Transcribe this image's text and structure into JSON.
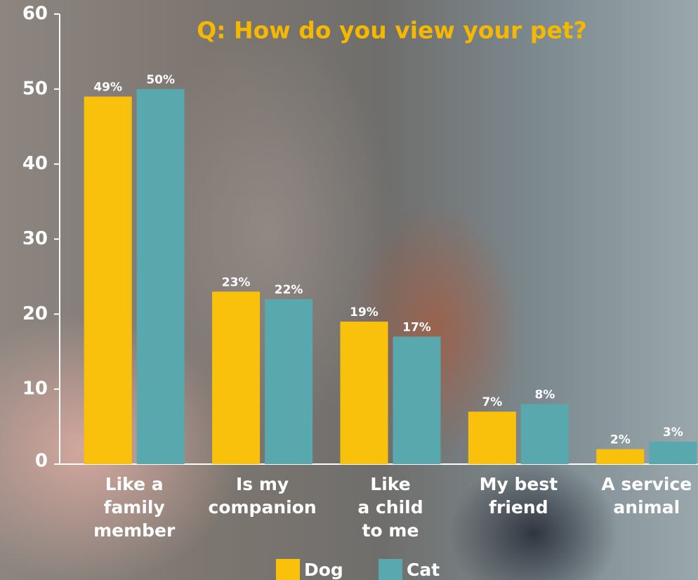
{
  "chart_data": {
    "type": "bar",
    "title": "Q: How do you view your pet?",
    "categories": [
      "Like a\nfamily\nmember",
      "Is my\ncompanion",
      "Like\na child\nto me",
      "My best\nfriend",
      "A service\nanimal"
    ],
    "series": [
      {
        "name": "Dog",
        "color": "#f9c00c",
        "values": [
          49,
          23,
          19,
          7,
          2
        ],
        "value_labels": [
          "49%",
          "23%",
          "19%",
          "7%",
          "2%"
        ]
      },
      {
        "name": "Cat",
        "color": "#58a8ae",
        "values": [
          50,
          22,
          17,
          8,
          3
        ],
        "value_labels": [
          "50%",
          "22%",
          "17%",
          "8%",
          "3%"
        ]
      }
    ],
    "ylim": [
      0,
      60
    ],
    "yticks": [
      0,
      10,
      20,
      30,
      40,
      50,
      60
    ]
  }
}
